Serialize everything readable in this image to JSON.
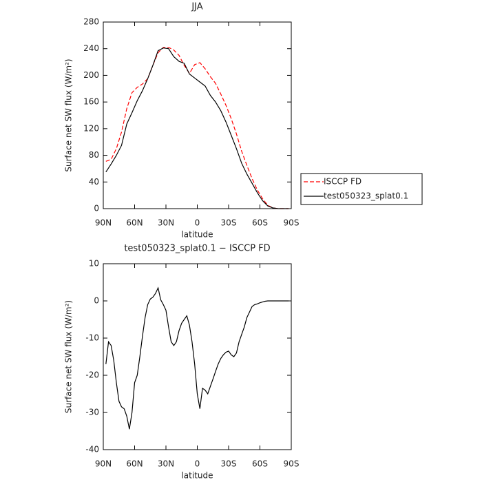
{
  "chart_data": [
    {
      "type": "line",
      "title": "JJA",
      "xlabel": "latitude",
      "ylabel": "Surface net SW flux (W/m²)",
      "x": [
        87.5,
        82.5,
        77.5,
        72.5,
        67.5,
        62.5,
        57.5,
        52.5,
        47.5,
        42.5,
        37.5,
        32.5,
        27.5,
        22.5,
        17.5,
        12.5,
        7.5,
        2.5,
        -2.5,
        -7.5,
        -12.5,
        -17.5,
        -22.5,
        -27.5,
        -32.5,
        -37.5,
        -42.5,
        -47.5,
        -52.5,
        -57.5,
        -62.5,
        -67.5,
        -72.5,
        -77.5,
        -82.5,
        -87.5
      ],
      "series": [
        {
          "name": "ISCCP FD",
          "color": "#ff0000",
          "style": "dashed",
          "values": [
            71,
            74,
            90,
            115,
            150,
            174,
            182,
            187,
            195,
            215,
            234,
            242,
            242,
            238,
            230,
            215,
            203,
            216,
            219,
            210,
            198,
            188,
            172,
            155,
            135,
            112,
            86,
            65,
            45,
            28,
            15,
            5,
            1,
            0,
            0,
            0
          ]
        },
        {
          "name": "test050323_splat0.1",
          "color": "#000000",
          "style": "solid",
          "values": [
            55,
            67,
            80,
            95,
            127,
            144,
            162,
            177,
            195,
            215,
            237,
            241,
            240,
            228,
            221,
            218,
            202,
            196,
            190,
            184,
            170,
            160,
            147,
            130,
            110,
            90,
            68,
            52,
            38,
            24,
            12,
            4,
            1,
            0,
            0,
            0
          ]
        }
      ],
      "xlim": [
        90,
        -90
      ],
      "xticks": [
        {
          "value": 90,
          "label": "90N"
        },
        {
          "value": 60,
          "label": "60N"
        },
        {
          "value": 30,
          "label": "30N"
        },
        0,
        {
          "value": -30,
          "label": "30S"
        },
        {
          "value": -60,
          "label": "60S"
        },
        {
          "value": -90,
          "label": "90S"
        }
      ],
      "ylim": [
        0,
        280
      ],
      "yticks": [
        0,
        40,
        80,
        120,
        160,
        200,
        240,
        280
      ],
      "legend": "outside-right"
    },
    {
      "type": "line",
      "title": "test050323_splat0.1 − ISCCP FD",
      "xlabel": "latitude",
      "ylabel": "Surface net SW flux (W/m²)",
      "x": [
        87.5,
        85,
        82.5,
        80,
        77.5,
        75,
        72.5,
        70,
        67.5,
        65,
        62.5,
        60,
        57.5,
        55,
        52.5,
        50,
        47.5,
        45,
        42.5,
        40,
        37.5,
        35,
        32.5,
        30,
        27.5,
        25,
        22.5,
        20,
        17.5,
        15,
        12.5,
        10,
        7.5,
        5,
        2.5,
        0,
        -2.5,
        -5,
        -7.5,
        -10,
        -12.5,
        -15,
        -17.5,
        -20,
        -22.5,
        -25,
        -27.5,
        -30,
        -32.5,
        -35,
        -37.5,
        -40,
        -42.5,
        -45,
        -47.5,
        -50,
        -52.5,
        -55,
        -57.5,
        -60,
        -62.5,
        -65,
        -67.5,
        -70,
        -72.5,
        -75,
        -77.5,
        -80,
        -82.5,
        -85,
        -87.5
      ],
      "series": [
        {
          "color": "#000000",
          "style": "solid",
          "values": [
            -17,
            -11,
            -12,
            -16,
            -22,
            -27,
            -28.5,
            -29,
            -31,
            -34.5,
            -30,
            -22,
            -20,
            -15,
            -9.5,
            -4.5,
            -1,
            0.5,
            1,
            2,
            3.5,
            0.3,
            -1,
            -2.5,
            -7,
            -11,
            -12,
            -11,
            -8,
            -6,
            -5,
            -4,
            -6.5,
            -11,
            -17,
            -25,
            -29,
            -23.5,
            -24,
            -25,
            -23,
            -21,
            -19,
            -17,
            -15.5,
            -14.5,
            -13.8,
            -13.5,
            -14.5,
            -15,
            -14,
            -11,
            -9,
            -7,
            -4.5,
            -3,
            -1.5,
            -1,
            -0.8,
            -0.5,
            -0.3,
            -0.1,
            0,
            0,
            0,
            0,
            0,
            0,
            0,
            0,
            0
          ]
        }
      ],
      "xlim": [
        90,
        -90
      ],
      "xticks": [
        {
          "value": 90,
          "label": "90N"
        },
        {
          "value": 60,
          "label": "60N"
        },
        {
          "value": 30,
          "label": "30N"
        },
        0,
        {
          "value": -30,
          "label": "30S"
        },
        {
          "value": -60,
          "label": "60S"
        },
        {
          "value": -90,
          "label": "90S"
        }
      ],
      "ylim": [
        -40,
        10
      ],
      "yticks": [
        -40,
        -30,
        -20,
        -10,
        0,
        10
      ]
    }
  ]
}
